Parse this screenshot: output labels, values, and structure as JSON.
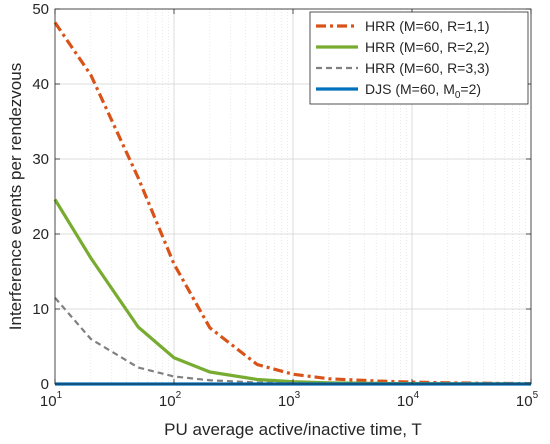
{
  "chart_data": {
    "type": "line",
    "xlabel": "PU average active/inactive time, T",
    "ylabel": "Interference events per rendezvous",
    "xscale": "log",
    "xlim": [
      10,
      100000
    ],
    "ylim": [
      0,
      50
    ],
    "grid": "on",
    "legend_location": "top-right",
    "y_ticks": [
      "0",
      "10",
      "20",
      "30",
      "40",
      "50"
    ],
    "x_ticks": [
      {
        "base": "10",
        "exp": "1"
      },
      {
        "base": "10",
        "exp": "2"
      },
      {
        "base": "10",
        "exp": "3"
      },
      {
        "base": "10",
        "exp": "4"
      },
      {
        "base": "10",
        "exp": "5"
      }
    ],
    "series": [
      {
        "name": "HRR (M=60, R=1,1)",
        "legend": {
          "main": "HRR (M=60, R=1,1)"
        },
        "color": "#D95319",
        "dash": "dashdot",
        "x": [
          10,
          20,
          50,
          100,
          200,
          500,
          1000,
          2000,
          5000,
          10000,
          20000,
          50000,
          100000
        ],
        "y": [
          48.2,
          41.2,
          27.5,
          16.0,
          7.5,
          2.6,
          1.3,
          0.7,
          0.4,
          0.25,
          0.15,
          0.08,
          0.05
        ]
      },
      {
        "name": "HRR (M=60, R=2,2)",
        "legend": {
          "main": "HRR (M=60, R=2,2)"
        },
        "color": "#77AC30",
        "dash": "solid",
        "x": [
          10,
          20,
          50,
          100,
          200,
          500,
          1000,
          2000,
          5000,
          10000,
          20000,
          50000,
          100000
        ],
        "y": [
          24.6,
          16.8,
          7.6,
          3.5,
          1.6,
          0.6,
          0.3,
          0.15,
          0.08,
          0.05,
          0.03,
          0.02,
          0.01
        ]
      },
      {
        "name": "HRR (M=60, R=3,3)",
        "legend": {
          "main": "HRR (M=60, R=3,3)"
        },
        "color": "#808080",
        "dash": "dashed",
        "x": [
          10,
          20,
          50,
          100,
          200,
          500,
          1000,
          2000,
          5000,
          10000,
          20000,
          50000,
          100000
        ],
        "y": [
          11.5,
          6.0,
          2.2,
          1.0,
          0.5,
          0.2,
          0.1,
          0.05,
          0.03,
          0.02,
          0.01,
          0.01,
          0.0
        ]
      },
      {
        "name": "DJS (M=60, M0=2)",
        "legend": {
          "main": "DJS (M=60, M",
          "sub": "0",
          "tail": "=2)"
        },
        "color": "#0072BD",
        "dash": "solid",
        "x": [
          10,
          20,
          50,
          100,
          200,
          500,
          1000,
          2000,
          5000,
          10000,
          20000,
          50000,
          100000
        ],
        "y": [
          0,
          0,
          0,
          0,
          0,
          0,
          0,
          0,
          0,
          0,
          0,
          0,
          0
        ]
      }
    ]
  }
}
